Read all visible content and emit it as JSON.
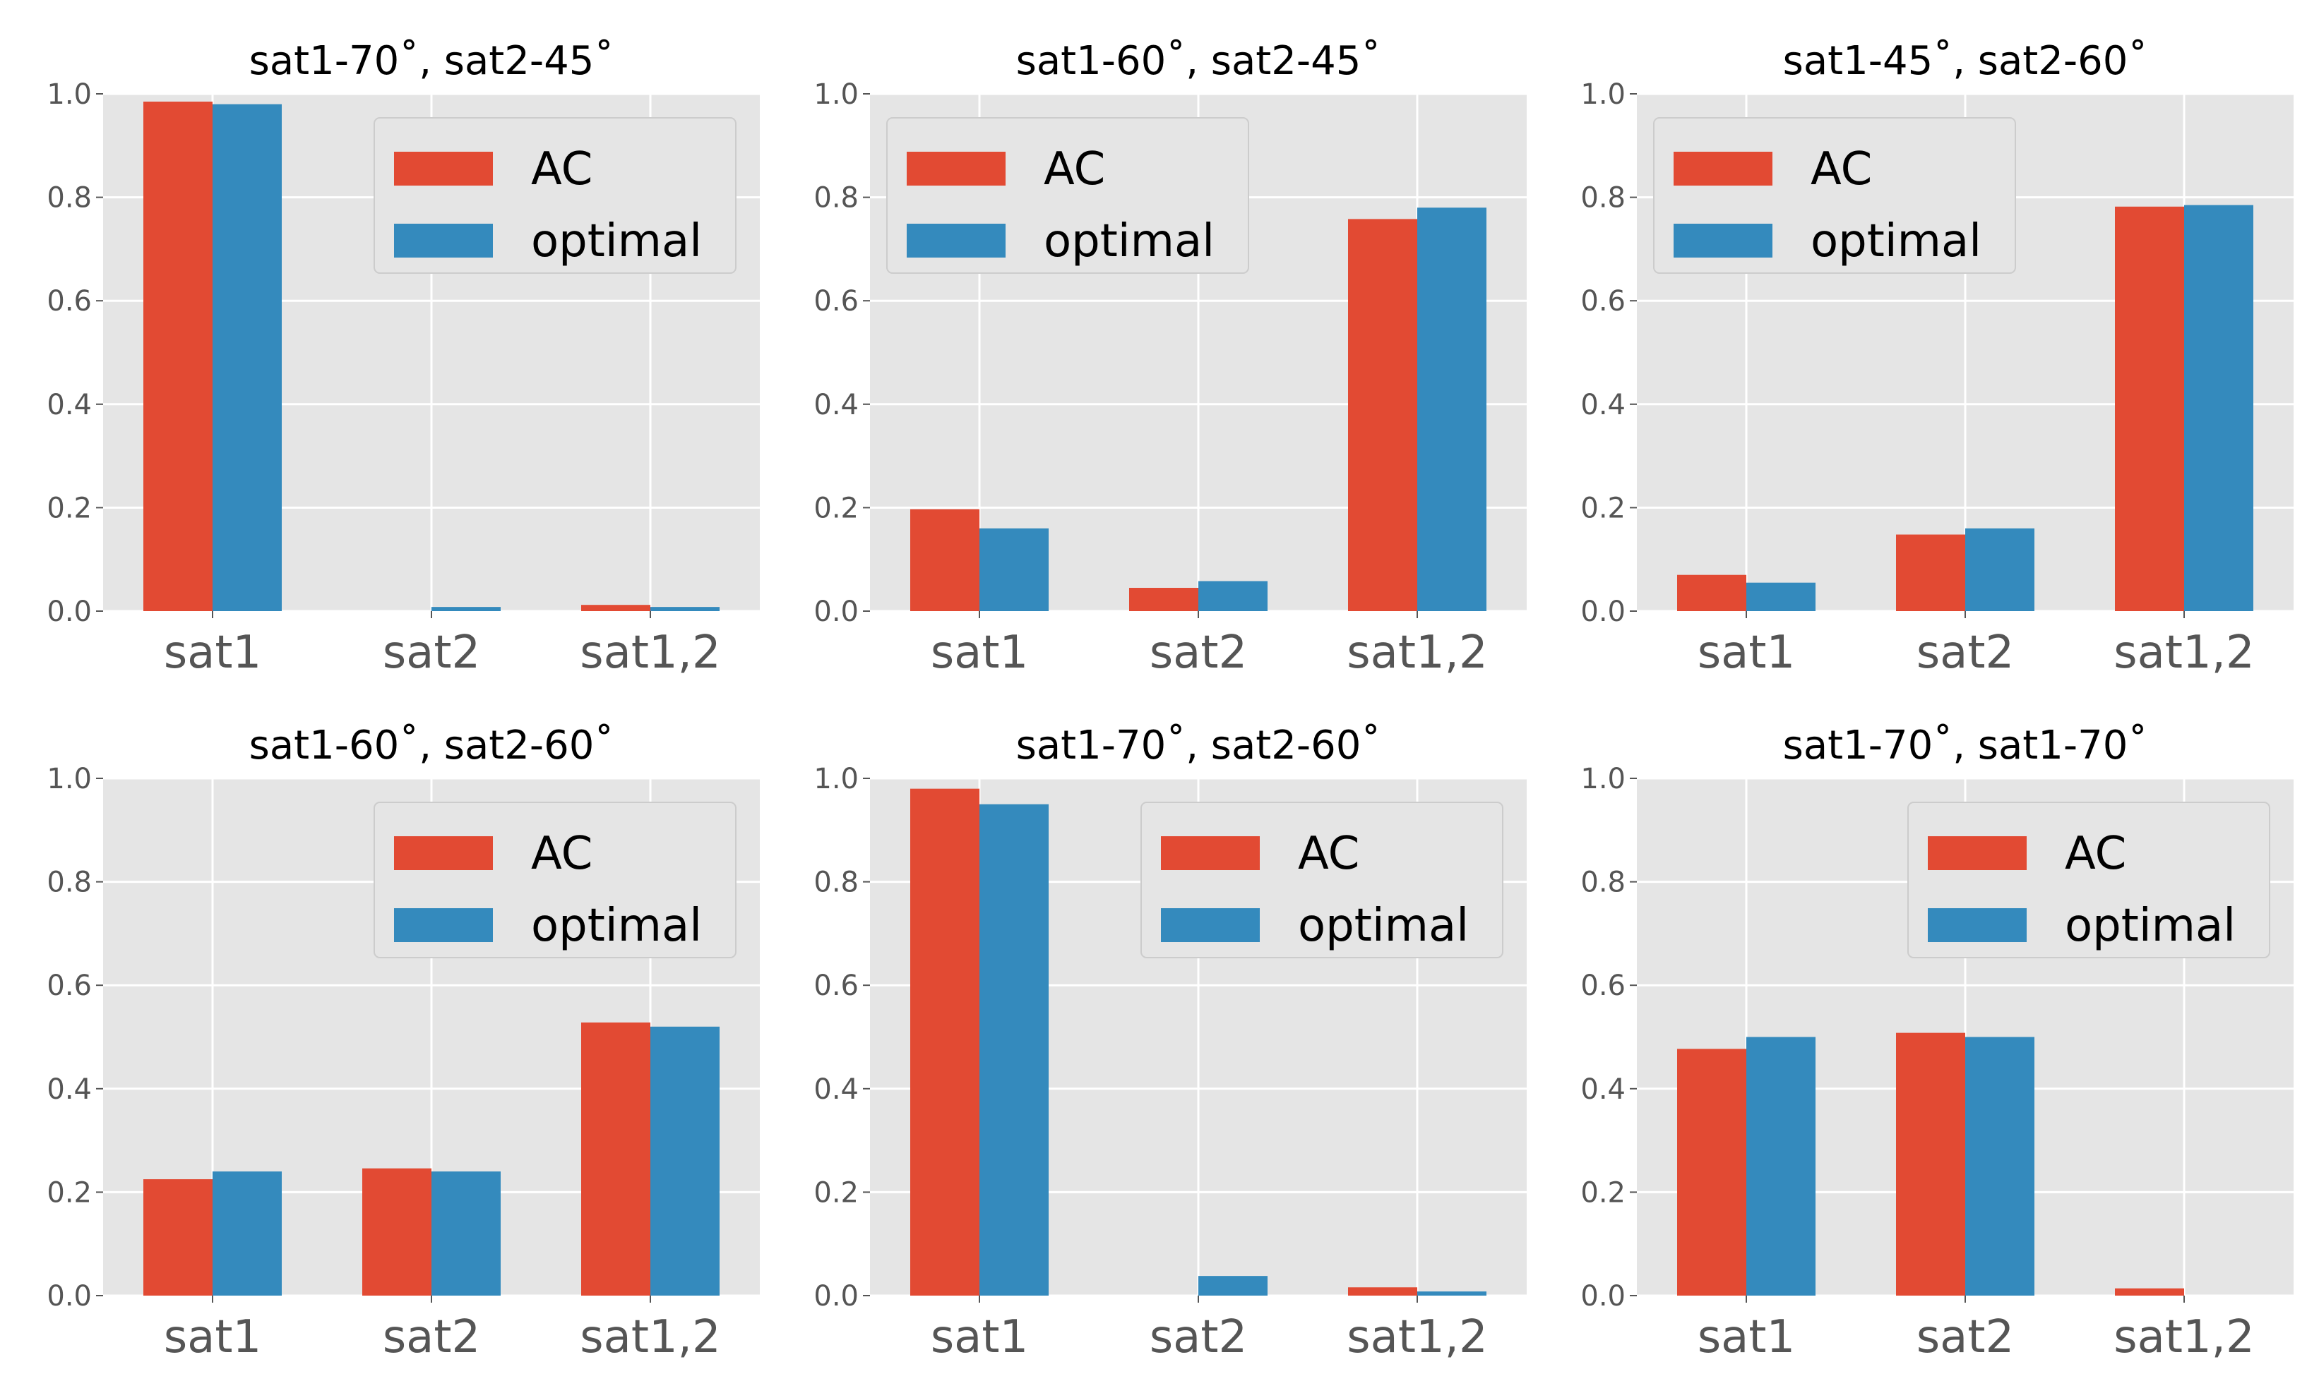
{
  "colors": {
    "AC": "#E24A33",
    "optimal": "#348ABD",
    "panel_bg": "#E5E5E5",
    "grid": "#FFFFFF"
  },
  "legend_labels": [
    "AC",
    "optimal"
  ],
  "chart_data": [
    {
      "type": "bar",
      "title": "sat1-70˚, sat2-45˚",
      "categories": [
        "sat1",
        "sat2",
        "sat1,2"
      ],
      "series": [
        {
          "name": "AC",
          "values": [
            0.985,
            0.0,
            0.012
          ]
        },
        {
          "name": "optimal",
          "values": [
            0.98,
            0.008,
            0.008
          ]
        }
      ],
      "ylim": [
        0,
        1.0
      ],
      "yticks": [
        "0.0",
        "0.2",
        "0.4",
        "0.6",
        "0.8",
        "1.0"
      ],
      "grid": true,
      "legend": "upper right"
    },
    {
      "type": "bar",
      "title": "sat1-60˚, sat2-45˚",
      "categories": [
        "sat1",
        "sat2",
        "sat1,2"
      ],
      "series": [
        {
          "name": "AC",
          "values": [
            0.197,
            0.045,
            0.758
          ]
        },
        {
          "name": "optimal",
          "values": [
            0.16,
            0.058,
            0.78
          ]
        }
      ],
      "ylim": [
        0,
        1.0
      ],
      "yticks": [
        "0.0",
        "0.2",
        "0.4",
        "0.6",
        "0.8",
        "1.0"
      ],
      "grid": true,
      "legend": "upper left"
    },
    {
      "type": "bar",
      "title": "sat1-45˚, sat2-60˚",
      "categories": [
        "sat1",
        "sat2",
        "sat1,2"
      ],
      "series": [
        {
          "name": "AC",
          "values": [
            0.07,
            0.148,
            0.782
          ]
        },
        {
          "name": "optimal",
          "values": [
            0.055,
            0.16,
            0.785
          ]
        }
      ],
      "ylim": [
        0,
        1.0
      ],
      "yticks": [
        "0.0",
        "0.2",
        "0.4",
        "0.6",
        "0.8",
        "1.0"
      ],
      "grid": true,
      "legend": "upper left"
    },
    {
      "type": "bar",
      "title": "sat1-60˚, sat2-60˚",
      "categories": [
        "sat1",
        "sat2",
        "sat1,2"
      ],
      "series": [
        {
          "name": "AC",
          "values": [
            0.225,
            0.246,
            0.528
          ]
        },
        {
          "name": "optimal",
          "values": [
            0.24,
            0.24,
            0.52
          ]
        }
      ],
      "ylim": [
        0,
        1.0
      ],
      "yticks": [
        "0.0",
        "0.2",
        "0.4",
        "0.6",
        "0.8",
        "1.0"
      ],
      "grid": true,
      "legend": "upper right"
    },
    {
      "type": "bar",
      "title": "sat1-70˚, sat2-60˚",
      "categories": [
        "sat1",
        "sat2",
        "sat1,2"
      ],
      "series": [
        {
          "name": "AC",
          "values": [
            0.98,
            0.0,
            0.016
          ]
        },
        {
          "name": "optimal",
          "values": [
            0.95,
            0.038,
            0.008
          ]
        }
      ],
      "ylim": [
        0,
        1.0
      ],
      "yticks": [
        "0.0",
        "0.2",
        "0.4",
        "0.6",
        "0.8",
        "1.0"
      ],
      "grid": true,
      "legend": "upper right"
    },
    {
      "type": "bar",
      "title": "sat1-70˚, sat1-70˚",
      "categories": [
        "sat1",
        "sat2",
        "sat1,2"
      ],
      "series": [
        {
          "name": "AC",
          "values": [
            0.477,
            0.508,
            0.014
          ]
        },
        {
          "name": "optimal",
          "values": [
            0.5,
            0.5,
            0.0
          ]
        }
      ],
      "ylim": [
        0,
        1.0
      ],
      "yticks": [
        "0.0",
        "0.2",
        "0.4",
        "0.6",
        "0.8",
        "1.0"
      ],
      "grid": true,
      "legend": "upper right"
    }
  ]
}
